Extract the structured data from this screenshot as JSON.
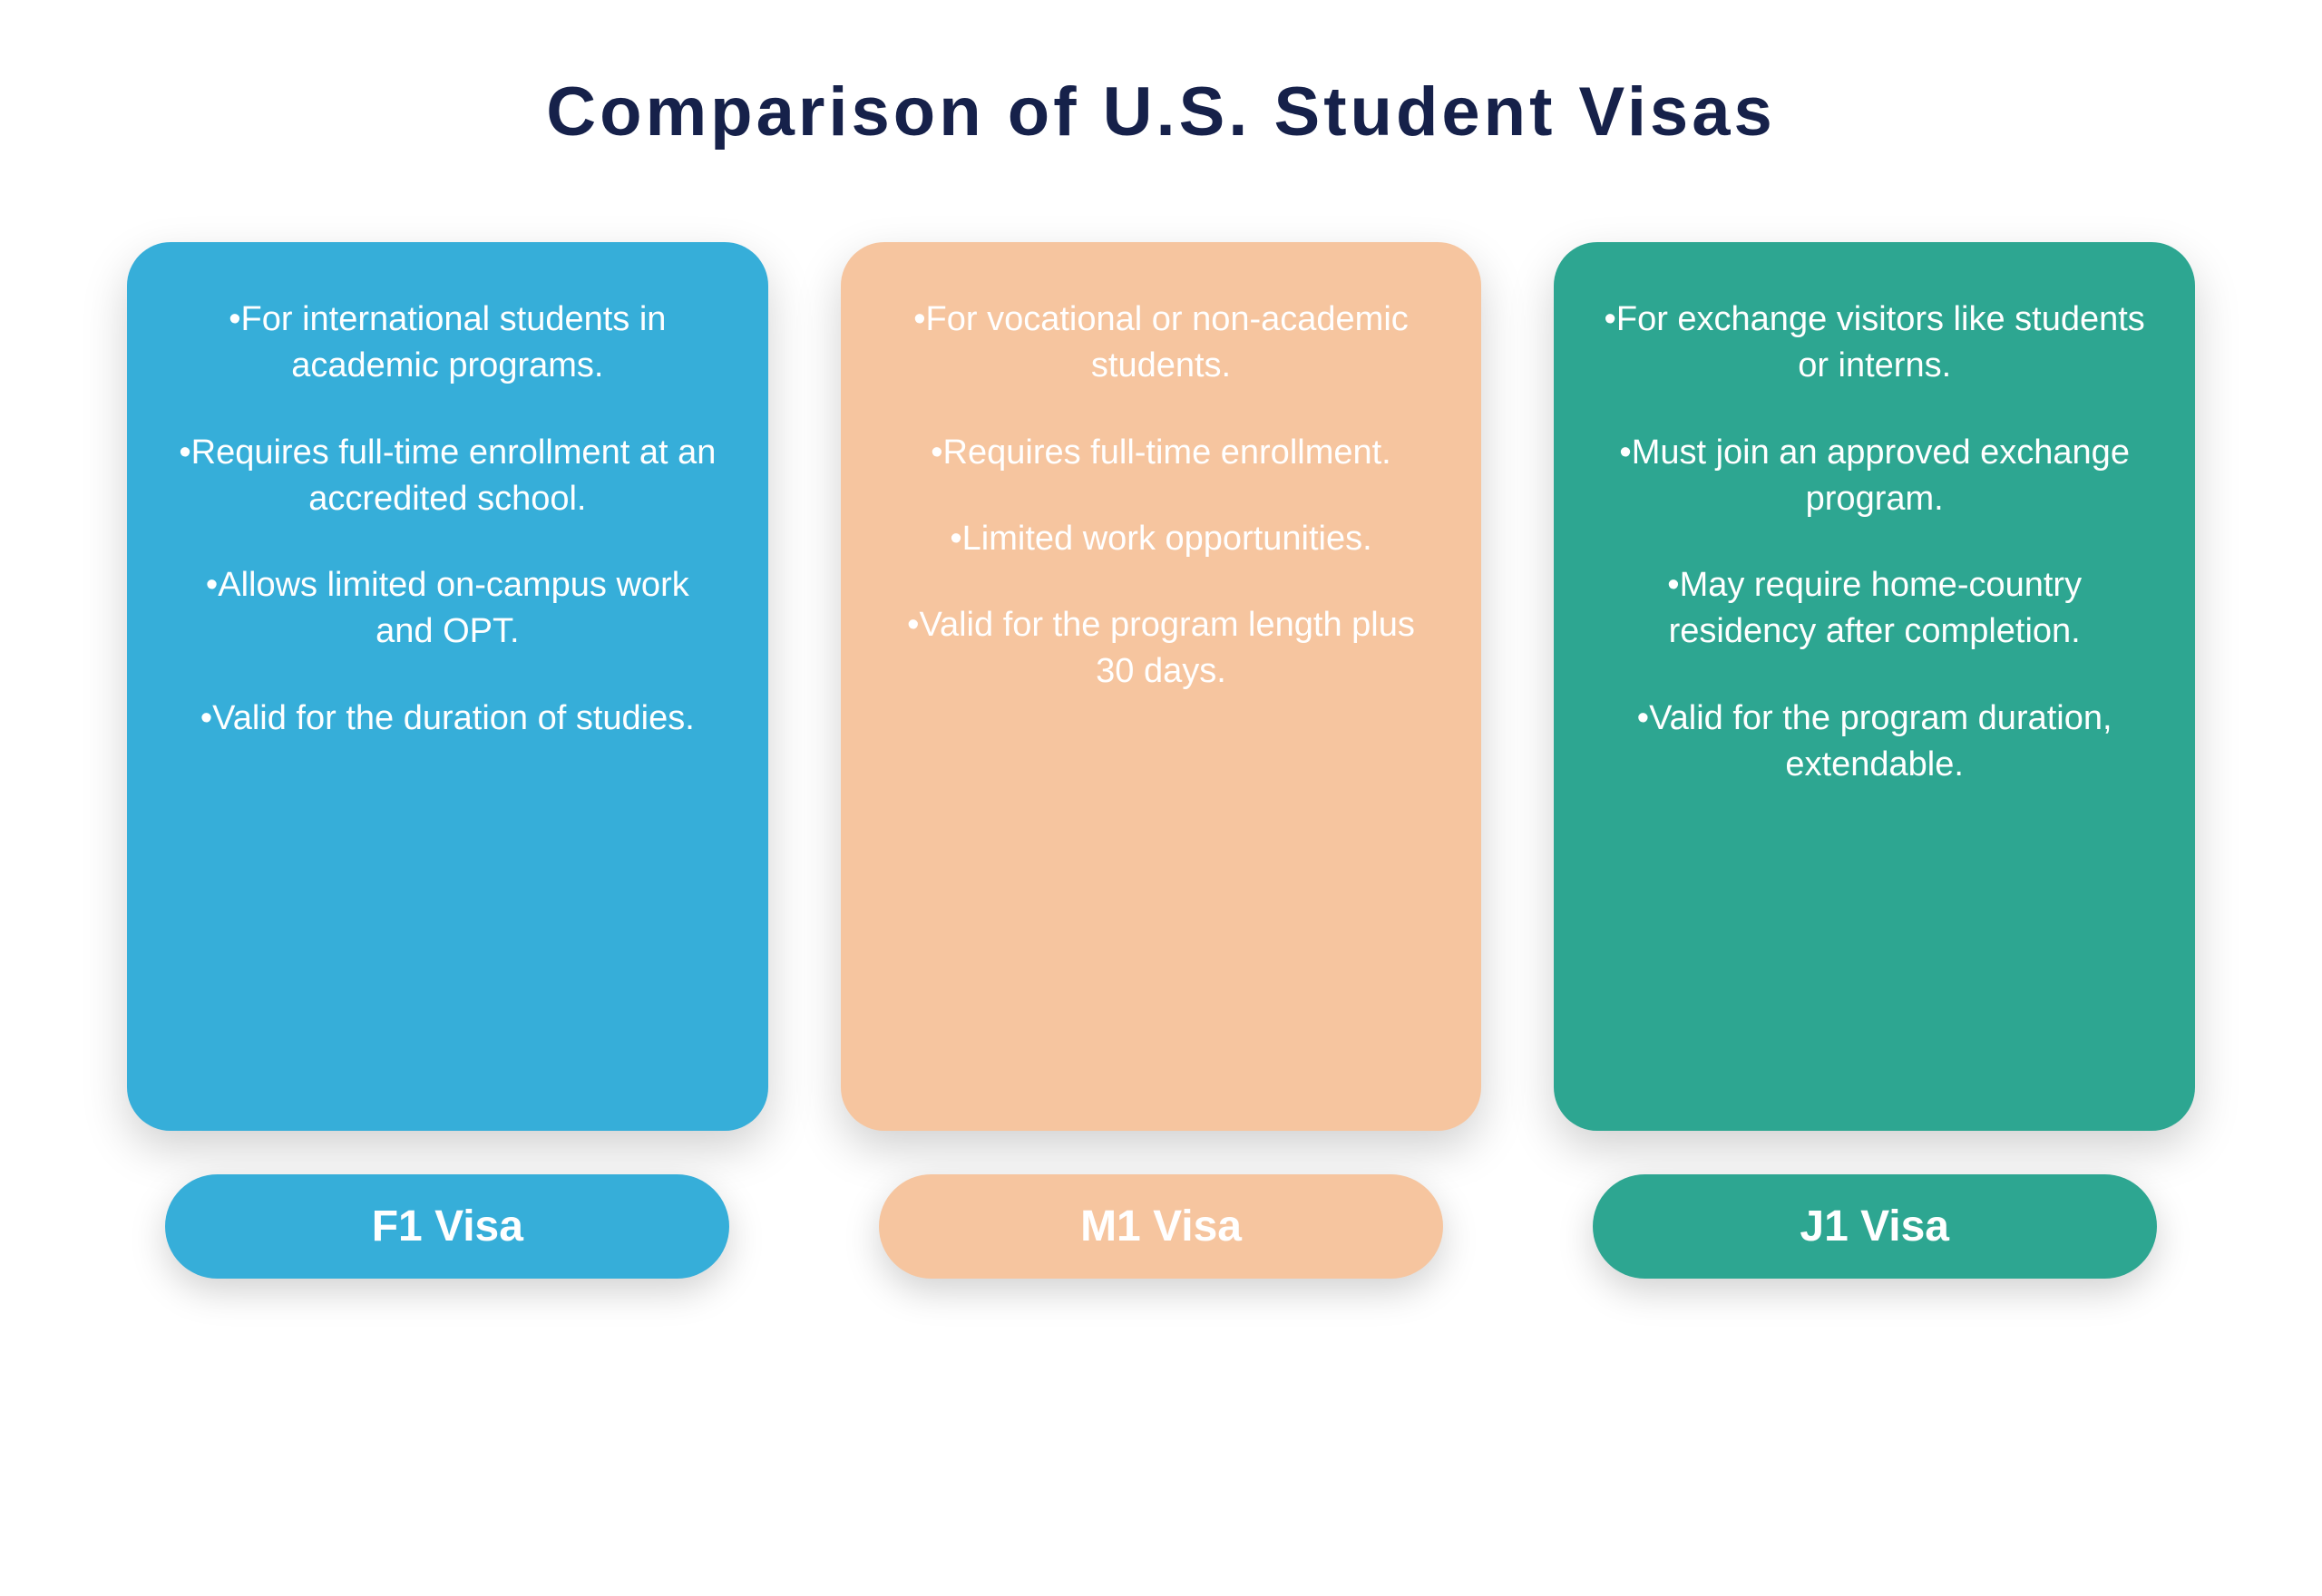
{
  "title": "Comparison of U.S. Student Visas",
  "title_color": "#16214a",
  "background_color": "#ffffff",
  "cards": [
    {
      "label": "F1 Visa",
      "color": "#36aed9",
      "points": [
        "•For international students in academic programs.",
        "•Requires full-time enrollment at an accredited school.",
        "•Allows limited on-campus work and OPT.",
        "•Valid for the duration of studies."
      ]
    },
    {
      "label": "M1 Visa",
      "color": "#f6c59f",
      "points": [
        "•For vocational or non-academic students.",
        "•Requires full-time enrollment.",
        "•Limited work opportunities.",
        "•Valid for the program length plus 30 days."
      ]
    },
    {
      "label": "J1 Visa",
      "color": "#2da691",
      "points": [
        "•For exchange visitors like students or interns.",
        "•Must join an approved exchange program.",
        "•May require home-country residency after completion.",
        "•Valid for the program duration, extendable."
      ]
    }
  ],
  "style": {
    "title_fontsize": 76,
    "body_fontsize": 38,
    "label_fontsize": 48,
    "card_border_radius": 48,
    "pill_border_radius": 70,
    "shadow_color": "rgba(0,0,0,0.18)"
  }
}
